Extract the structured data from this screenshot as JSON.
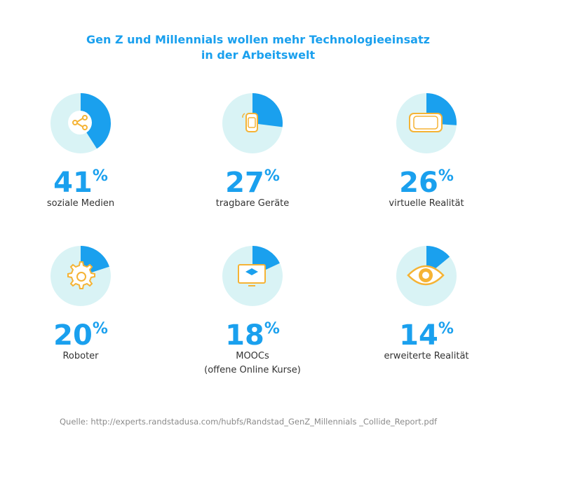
{
  "chart_data": {
    "type": "pie",
    "title": "Gen Z und Millennials wollen mehr Technologieeinsatz\nin der Arbeitswelt",
    "categories": [
      "soziale Medien",
      "tragbare Geräte",
      "virtuelle Realität",
      "Roboter",
      "MOOCs\n(offene Online Kurse)",
      "erweiterte Realität"
    ],
    "values": [
      41,
      27,
      26,
      20,
      18,
      14
    ],
    "value_labels": [
      "41%",
      "27%",
      "26%",
      "20%",
      "18%",
      "14%"
    ],
    "color": "#1aa0ee",
    "source": "Quelle: http://experts.randstadusa.com/hubfs/Randstad_GenZ_Millennials _Collide_Report.pdf"
  }
}
